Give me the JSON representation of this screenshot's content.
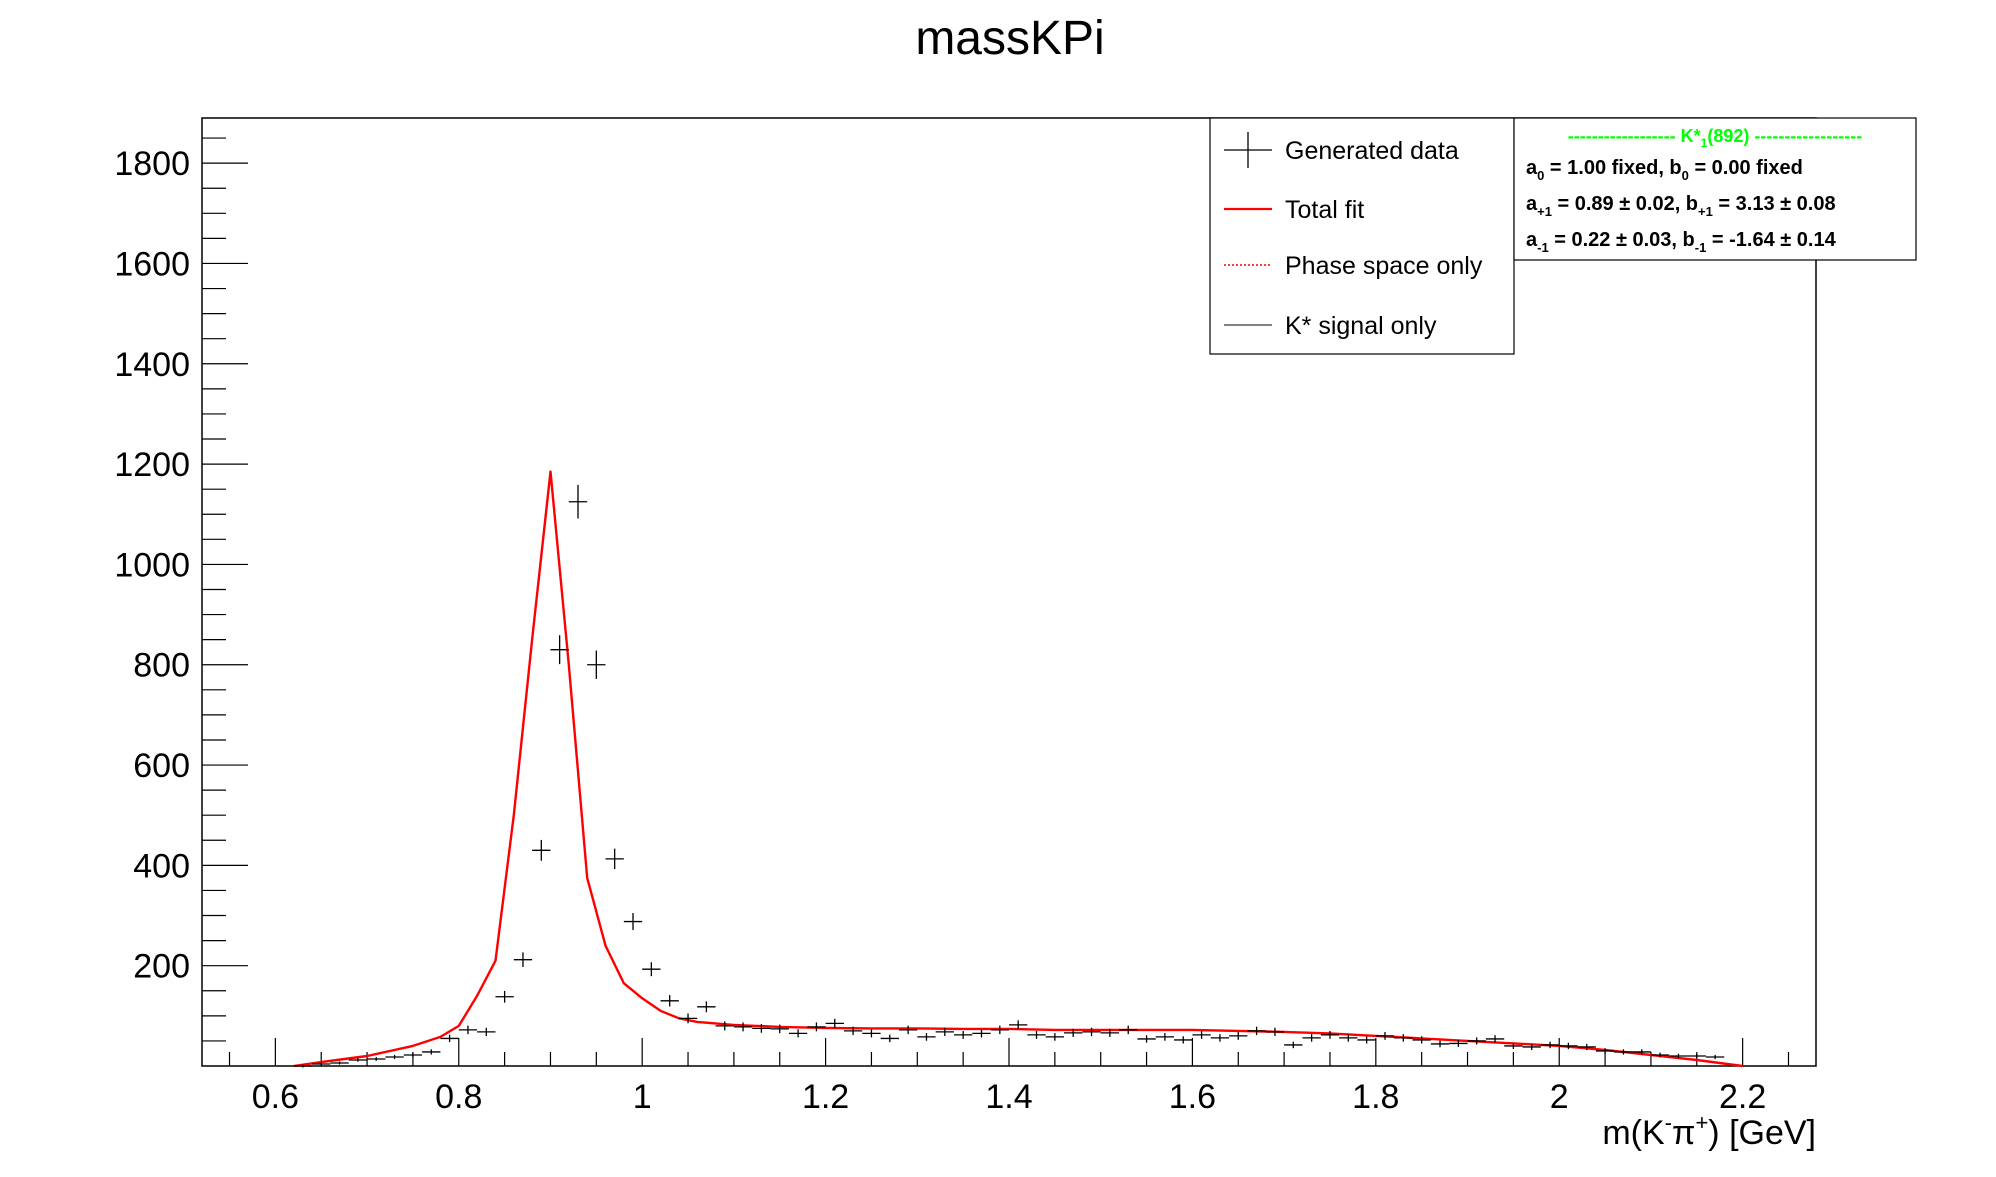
{
  "chart_data": {
    "type": "scatter",
    "title": "massKPi",
    "xlabel": "m(K",
    "xlabel_parts": {
      "main": "m(K",
      "sup1": "-",
      "pi": "π",
      "sup2": "+",
      "tail": ") [GeV]"
    },
    "ylabel": "",
    "xlim": [
      0.52,
      2.28
    ],
    "ylim": [
      0,
      1890
    ],
    "xticks": [
      0.6,
      0.8,
      1.0,
      1.2,
      1.4,
      1.6,
      1.8,
      2.0,
      2.2
    ],
    "xtick_labels": [
      "0.6",
      "0.8",
      "1",
      "1.2",
      "1.4",
      "1.6",
      "1.8",
      "2",
      "2.2"
    ],
    "yticks": [
      200,
      400,
      600,
      800,
      1000,
      1200,
      1400,
      1600,
      1800
    ],
    "ytick_labels": [
      "200",
      "400",
      "600",
      "800",
      "1000",
      "1200",
      "1400",
      "1600",
      "1800"
    ],
    "grid": false,
    "legend_position": "top-right",
    "legend": [
      {
        "label": "Generated data",
        "style": "error-cross",
        "color": "#000000"
      },
      {
        "label": "Total fit",
        "style": "solid",
        "color": "#ff0000"
      },
      {
        "label": "Phase space only",
        "style": "dotted",
        "color": "#ff0000"
      },
      {
        "label": "K* signal only",
        "style": "solid-thin",
        "color": "#000000"
      }
    ],
    "info_box": {
      "header": "------------------  K*",
      "header_sub": "1",
      "header_tail": "(892)  ------------------",
      "header_color": "#00ff00",
      "lines": [
        [
          {
            "t": "a"
          },
          {
            "t": "0",
            "sub": true
          },
          {
            "t": " = 1.00 fixed, b"
          },
          {
            "t": "0",
            "sub": true
          },
          {
            "t": " = 0.00 fixed"
          }
        ],
        [
          {
            "t": "a"
          },
          {
            "t": "+1",
            "sub": true
          },
          {
            "t": " = 0.89 ± 0.02, b"
          },
          {
            "t": "+1",
            "sub": true
          },
          {
            "t": " = 3.13 ± 0.08"
          }
        ],
        [
          {
            "t": "a"
          },
          {
            "t": "-1",
            "sub": true
          },
          {
            "t": " = 0.22 ± 0.03, b"
          },
          {
            "t": "-1",
            "sub": true
          },
          {
            "t": " = -1.64 ± 0.14"
          }
        ]
      ]
    },
    "series": [
      {
        "name": "Generated data",
        "kind": "points",
        "color": "#000000",
        "bin_half_width": 0.01,
        "x": [
          0.63,
          0.65,
          0.67,
          0.69,
          0.71,
          0.73,
          0.75,
          0.77,
          0.79,
          0.81,
          0.83,
          0.85,
          0.87,
          0.89,
          0.91,
          0.93,
          0.95,
          0.97,
          0.99,
          1.01,
          1.03,
          1.05,
          1.07,
          1.09,
          1.11,
          1.13,
          1.15,
          1.17,
          1.19,
          1.21,
          1.23,
          1.25,
          1.27,
          1.29,
          1.31,
          1.33,
          1.35,
          1.37,
          1.39,
          1.41,
          1.43,
          1.45,
          1.47,
          1.49,
          1.51,
          1.53,
          1.55,
          1.57,
          1.59,
          1.61,
          1.63,
          1.65,
          1.67,
          1.69,
          1.71,
          1.73,
          1.75,
          1.77,
          1.79,
          1.81,
          1.83,
          1.85,
          1.87,
          1.89,
          1.91,
          1.93,
          1.95,
          1.97,
          1.99,
          2.01,
          2.03,
          2.05,
          2.07,
          2.09,
          2.11,
          2.13,
          2.15,
          2.17
        ],
        "y": [
          0,
          4,
          6,
          12,
          14,
          18,
          22,
          28,
          55,
          72,
          68,
          138,
          212,
          430,
          830,
          1125,
          800,
          413,
          288,
          193,
          130,
          95,
          118,
          80,
          78,
          75,
          74,
          65,
          78,
          85,
          70,
          65,
          55,
          72,
          58,
          68,
          62,
          65,
          72,
          82,
          62,
          58,
          66,
          68,
          66,
          72,
          54,
          58,
          52,
          62,
          56,
          60,
          70,
          68,
          42,
          56,
          62,
          56,
          52,
          60,
          56,
          52,
          44,
          45,
          50,
          54,
          40,
          38,
          42,
          40,
          38,
          30,
          28,
          28,
          22,
          20,
          20,
          18
        ],
        "y_shift": -0.055
      },
      {
        "name": "Total fit",
        "kind": "line",
        "color": "#ff0000",
        "x": [
          0.62,
          0.65,
          0.7,
          0.75,
          0.78,
          0.8,
          0.82,
          0.84,
          0.86,
          0.88,
          0.9,
          0.92,
          0.94,
          0.96,
          0.98,
          1.0,
          1.02,
          1.04,
          1.06,
          1.1,
          1.15,
          1.2,
          1.25,
          1.3,
          1.35,
          1.4,
          1.45,
          1.5,
          1.55,
          1.6,
          1.65,
          1.7,
          1.75,
          1.8,
          1.85,
          1.9,
          1.95,
          2.0,
          2.05,
          2.1,
          2.15,
          2.2
        ],
        "y": [
          0,
          8,
          20,
          40,
          58,
          80,
          140,
          210,
          500,
          850,
          1185,
          800,
          375,
          240,
          165,
          135,
          110,
          95,
          88,
          82,
          78,
          76,
          75,
          75,
          74,
          74,
          72,
          72,
          72,
          72,
          70,
          68,
          65,
          60,
          55,
          50,
          45,
          40,
          32,
          22,
          12,
          0
        ]
      }
    ]
  }
}
